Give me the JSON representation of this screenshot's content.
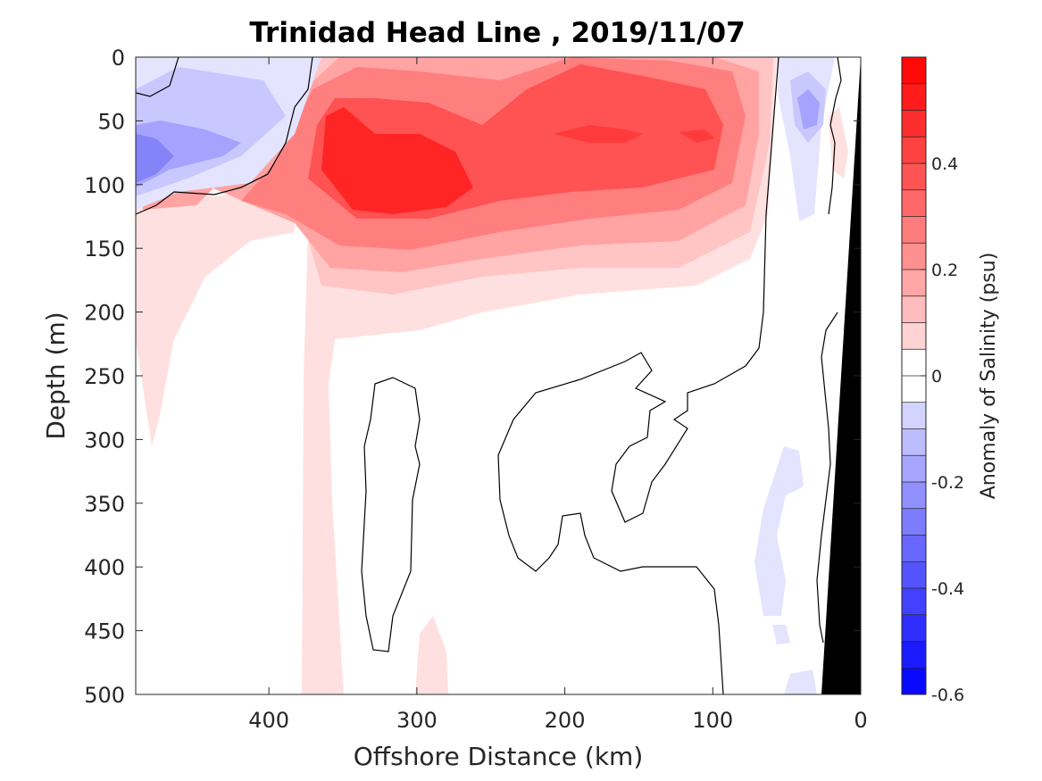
{
  "chart_data": {
    "type": "heatmap",
    "title": "Trinidad Head Line , 2019/11/07",
    "xlabel": "Offshore Distance (km)",
    "ylabel": "Depth (m)",
    "xlim": [
      490,
      0
    ],
    "ylim": [
      0,
      500
    ],
    "x_reversed": true,
    "y_reversed": true,
    "x_ticks": [
      400,
      300,
      200,
      100,
      0
    ],
    "x_tick_labels": [
      "400",
      "300",
      "200",
      "100",
      "0"
    ],
    "y_ticks": [
      0,
      50,
      100,
      150,
      200,
      250,
      300,
      350,
      400,
      450,
      500
    ],
    "y_tick_labels": [
      "0",
      "50",
      "100",
      "150",
      "200",
      "250",
      "300",
      "350",
      "400",
      "450",
      "500"
    ],
    "colorbar": {
      "label": "Anomaly of Salinity (psu)",
      "limits": [
        -0.6,
        0.6
      ],
      "step": 0.05,
      "tick_values": [
        -0.6,
        -0.4,
        -0.2,
        0,
        0.2,
        0.4
      ],
      "tick_labels": [
        "-0.6",
        "-0.4",
        "-0.2",
        "0",
        "0.2",
        "0.4"
      ],
      "positive_color": "#ff0000",
      "negative_color": "#0000ff",
      "zero_color": "#ffffff"
    },
    "zero_contour_color": "#000000",
    "bathymetry_color": "#000000",
    "bathymetry_profile": [
      [
        0,
        0
      ],
      [
        4,
        100
      ],
      [
        12,
        250
      ],
      [
        20,
        400
      ],
      [
        28,
        500
      ]
    ],
    "features": [
      {
        "kind": "positive_core",
        "x": 350,
        "y": 95,
        "peak": 0.6
      },
      {
        "kind": "positive_core",
        "x": 308,
        "y": 98,
        "peak": 0.6
      },
      {
        "kind": "positive_core",
        "x": 185,
        "y": 60,
        "peak": 0.45
      },
      {
        "kind": "positive_core",
        "x": 115,
        "y": 60,
        "peak": 0.4
      },
      {
        "kind": "negative_core",
        "x": 470,
        "y": 80,
        "peak": -0.3
      },
      {
        "kind": "negative_core",
        "x": 40,
        "y": 45,
        "peak": -0.3
      },
      {
        "kind": "negative_patch",
        "x": 70,
        "y": 390,
        "peak": -0.1
      }
    ]
  }
}
